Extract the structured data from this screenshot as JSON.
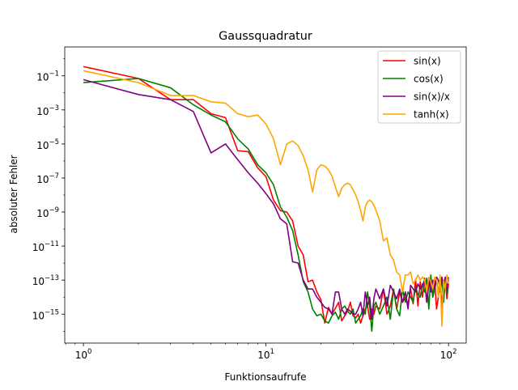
{
  "chart_data": {
    "type": "line",
    "title": "Gaussquadratur",
    "xlabel": "Funktionsaufrufe",
    "ylabel": "absoluter Fehler",
    "xscale": "log",
    "yscale": "log",
    "xlim": [
      0.79,
      125
    ],
    "ylim": [
      2e-17,
      5
    ],
    "x_ticks": [
      {
        "value": 1,
        "base": "10",
        "exp": "0"
      },
      {
        "value": 10,
        "base": "10",
        "exp": "1"
      },
      {
        "value": 100,
        "base": "10",
        "exp": "2"
      }
    ],
    "y_ticks": [
      {
        "value": 1e-15,
        "base": "10",
        "exp": "−15"
      },
      {
        "value": 1e-13,
        "base": "10",
        "exp": "−13"
      },
      {
        "value": 1e-11,
        "base": "10",
        "exp": "−11"
      },
      {
        "value": 1e-09,
        "base": "10",
        "exp": "−9"
      },
      {
        "value": 1e-07,
        "base": "10",
        "exp": "−7"
      },
      {
        "value": 1e-05,
        "base": "10",
        "exp": "−5"
      },
      {
        "value": 0.001,
        "base": "10",
        "exp": "−3"
      },
      {
        "value": 0.1,
        "base": "10",
        "exp": "−1"
      }
    ],
    "legend_position": "top-right",
    "grid": false,
    "series": [
      {
        "name": "sin(x)",
        "color": "#ff0000",
        "x": [
          1,
          2,
          3,
          4,
          5,
          6,
          7,
          8,
          9,
          10,
          11,
          12,
          13,
          14,
          15,
          16,
          17,
          18,
          19,
          20,
          21,
          22,
          23,
          24,
          25,
          26,
          27,
          28,
          29,
          30,
          31,
          32,
          33,
          34,
          35,
          36,
          37,
          38,
          39,
          40,
          42,
          44,
          46,
          48,
          50,
          52,
          54,
          56,
          58,
          60,
          62,
          64,
          66,
          68,
          70,
          72,
          74,
          76,
          78,
          80,
          82,
          84,
          86,
          88,
          90,
          92,
          94,
          96,
          98,
          100
        ],
        "y": [
          0.35,
          0.07,
          0.004,
          0.004,
          0.0006,
          0.00035,
          4e-06,
          3.5e-06,
          4e-07,
          1.2e-07,
          5e-09,
          1.2e-09,
          1e-09,
          3e-10,
          1e-11,
          3e-12,
          8e-14,
          1e-13,
          2e-14,
          7e-15,
          3e-16,
          2.5e-15,
          1e-15,
          2.2e-15,
          5e-15,
          4e-16,
          8e-16,
          1.5e-15,
          5e-15,
          8e-16,
          6e-16,
          1e-15,
          3e-16,
          8e-16,
          2e-15,
          3e-15,
          5e-16,
          2e-15,
          1e-15,
          3e-15,
          2e-15,
          3e-14,
          1e-15,
          3e-15,
          3e-14,
          2e-15,
          2e-14,
          5e-15,
          1e-14,
          4e-15,
          3e-14,
          4e-15,
          1.1e-13,
          3e-15,
          8e-14,
          1e-14,
          1.3e-13,
          5e-15,
          5e-14,
          8e-14,
          1e-14,
          1e-13,
          2e-15,
          1e-14,
          1e-13,
          3e-15,
          5e-14,
          1.3e-13,
          8e-15,
          6e-14
        ]
      },
      {
        "name": "cos(x)",
        "color": "#008000",
        "x": [
          1,
          2,
          3,
          4,
          5,
          6,
          7,
          8,
          9,
          10,
          11,
          12,
          13,
          14,
          15,
          16,
          17,
          18,
          19,
          20,
          21,
          22,
          23,
          24,
          25,
          26,
          27,
          28,
          29,
          30,
          31,
          32,
          33,
          34,
          35,
          36,
          37,
          38,
          39,
          40,
          42,
          44,
          46,
          48,
          50,
          52,
          54,
          56,
          58,
          60,
          62,
          64,
          66,
          68,
          70,
          72,
          74,
          76,
          78,
          80,
          82,
          84,
          86,
          88,
          90,
          92,
          94,
          96,
          98,
          100
        ],
        "y": [
          0.04,
          0.07,
          0.02,
          0.002,
          0.0005,
          0.0002,
          2e-05,
          5e-06,
          6e-07,
          2e-07,
          4e-08,
          2e-09,
          5e-10,
          8e-11,
          3e-12,
          8e-14,
          2e-14,
          2e-15,
          8e-16,
          1e-15,
          4e-16,
          3e-16,
          8e-16,
          1.3e-15,
          5e-16,
          2e-15,
          3e-15,
          1.5e-15,
          1e-15,
          2e-15,
          3e-16,
          5e-16,
          8e-16,
          2e-15,
          1e-15,
          2e-14,
          3e-15,
          1e-16,
          3e-15,
          5e-15,
          1e-15,
          3e-15,
          1e-14,
          5e-16,
          3e-14,
          2e-15,
          8e-16,
          3e-14,
          5e-15,
          2e-14,
          1e-14,
          5e-15,
          4e-14,
          1.5e-14,
          1e-14,
          6e-14,
          2e-14,
          1.3e-13,
          2e-15,
          2e-13,
          1e-14,
          3e-14,
          1e-13,
          2e-14,
          2e-14,
          1.2e-13,
          5e-15,
          1e-13,
          2e-14,
          1e-13
        ]
      },
      {
        "name": "sin(x)/x",
        "color": "#800080",
        "x": [
          1,
          2,
          3,
          4,
          5,
          6,
          7,
          8,
          9,
          10,
          11,
          12,
          13,
          14,
          15,
          16,
          17,
          18,
          19,
          20,
          21,
          22,
          23,
          24,
          25,
          26,
          27,
          28,
          29,
          30,
          31,
          32,
          33,
          34,
          35,
          36,
          37,
          38,
          39,
          40,
          42,
          44,
          46,
          48,
          50,
          52,
          54,
          56,
          58,
          60,
          62,
          64,
          66,
          68,
          70,
          72,
          74,
          76,
          78,
          80,
          82,
          84,
          86,
          88,
          90,
          92,
          94,
          96,
          98,
          100
        ],
        "y": [
          0.06,
          0.008,
          0.004,
          0.0008,
          3e-06,
          1e-05,
          1.2e-06,
          2e-07,
          5e-08,
          1.2e-08,
          3e-09,
          4e-10,
          2e-10,
          1.2e-12,
          1e-12,
          1e-13,
          3e-14,
          3e-14,
          1e-14,
          5e-15,
          2.5e-15,
          2e-15,
          1e-15,
          2e-14,
          2e-14,
          2e-15,
          1e-15,
          2e-15,
          1.5e-15,
          1e-15,
          1e-15,
          2e-15,
          5e-15,
          8e-16,
          2e-14,
          3e-15,
          1e-14,
          5e-16,
          8e-15,
          3e-14,
          8e-15,
          3e-14,
          3e-15,
          5e-14,
          2e-14,
          8e-15,
          3e-14,
          5e-15,
          2e-14,
          2e-15,
          5e-14,
          3e-14,
          2e-14,
          6e-14,
          3e-14,
          5e-14,
          1e-13,
          5e-15,
          1.3e-13,
          2e-14,
          1e-13,
          3e-14,
          1.5e-13,
          1e-13,
          3e-14,
          1.5e-13,
          5e-14,
          1.5e-13,
          3e-14,
          1.5e-13
        ]
      },
      {
        "name": "tanh(x)",
        "color": "#ffa500",
        "x": [
          1,
          2,
          3,
          4,
          5,
          6,
          7,
          8,
          9,
          10,
          11,
          12,
          13,
          14,
          15,
          16,
          17,
          18,
          19,
          20,
          21,
          22,
          23,
          24,
          25,
          26,
          27,
          28,
          29,
          30,
          31,
          32,
          33,
          34,
          35,
          36,
          37,
          38,
          39,
          40,
          42,
          44,
          46,
          48,
          50,
          52,
          54,
          56,
          58,
          60,
          62,
          64,
          66,
          68,
          70,
          72,
          74,
          76,
          78,
          80,
          82,
          84,
          86,
          88,
          90,
          92,
          94,
          96,
          98,
          100
        ],
        "y": [
          0.2,
          0.04,
          0.007,
          0.007,
          0.003,
          0.0025,
          0.0006,
          0.0004,
          0.0005,
          0.00015,
          2e-05,
          6e-07,
          1e-05,
          1.5e-05,
          8e-06,
          2e-06,
          3e-07,
          1.5e-08,
          3e-07,
          6e-07,
          5e-07,
          3e-07,
          1.3e-07,
          3e-08,
          8e-09,
          2.5e-08,
          4e-08,
          5e-08,
          4e-08,
          2e-08,
          1e-08,
          4e-09,
          1.2e-09,
          3e-10,
          2e-09,
          4e-09,
          5e-09,
          4e-09,
          2.5e-09,
          1.3e-09,
          3e-10,
          2e-11,
          3e-11,
          3e-12,
          1.5e-12,
          3e-13,
          2e-13,
          2e-14,
          2e-13,
          2e-13,
          3e-13,
          6e-14,
          1e-13,
          2e-13,
          1e-13,
          1.5e-13,
          1e-13,
          2e-14,
          1.5e-13,
          8e-14,
          3e-14,
          1.5e-13,
          1e-13,
          1e-14,
          2e-13,
          2e-16,
          1e-13,
          3e-14,
          2e-13,
          6e-14
        ]
      }
    ]
  }
}
